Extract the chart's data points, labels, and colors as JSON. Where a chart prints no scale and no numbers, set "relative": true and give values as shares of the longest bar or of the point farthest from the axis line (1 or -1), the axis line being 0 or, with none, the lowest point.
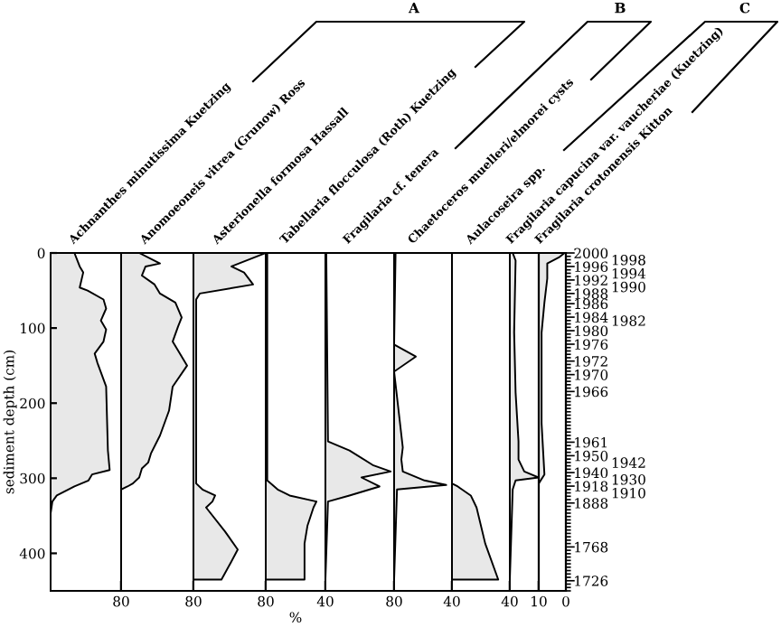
{
  "chart_data": [
    {
      "type": "area",
      "orientation": "horizontal",
      "title": "Achnanthes minutissima Kuetzing",
      "ylabel": "sediment depth (cm)",
      "xlim": [
        0,
        80
      ],
      "xticks": [
        80
      ],
      "ylim": [
        450,
        0
      ],
      "yticks": [
        0,
        100,
        200,
        300,
        400
      ],
      "annotations": [
        "A"
      ],
      "series": [
        {
          "color": "#e8e8e8",
          "x": [
            0,
            18,
            26,
            46,
            50,
            62,
            74,
            90,
            102,
            118,
            134,
            146,
            178,
            263,
            289,
            295,
            303,
            311,
            323,
            331,
            347,
            435
          ],
          "values": [
            27,
            33,
            37,
            33,
            42,
            60,
            63,
            57,
            63,
            60,
            50,
            53,
            63,
            65,
            67,
            47,
            43,
            27,
            7,
            2,
            0,
            0
          ]
        }
      ]
    },
    {
      "type": "area",
      "orientation": "horizontal",
      "title": "Anomoeoneis vitrea (Grunow) Ross",
      "xlim": [
        0,
        80
      ],
      "xticks": [
        80
      ],
      "ylim": [
        450,
        0
      ],
      "tick_labels": "x",
      "series": [
        {
          "color": "#e8e8e8",
          "x": [
            0,
            14,
            18,
            30,
            42,
            54,
            66,
            86,
            98,
            118,
            130,
            150,
            178,
            210,
            243,
            267,
            279,
            287,
            299,
            307,
            311,
            315,
            435
          ],
          "values": [
            20,
            43,
            27,
            23,
            37,
            43,
            60,
            67,
            63,
            57,
            63,
            73,
            57,
            53,
            43,
            33,
            30,
            23,
            20,
            13,
            7,
            0,
            0
          ]
        }
      ]
    },
    {
      "type": "area",
      "orientation": "horizontal",
      "title": "Asterionella formosa Hassall",
      "xlim": [
        0,
        80
      ],
      "xticks": [
        80
      ],
      "ylim": [
        450,
        0
      ],
      "tick_labels": "x",
      "series": [
        {
          "color": "#e8e8e8",
          "x": [
            0,
            18,
            26,
            42,
            54,
            62,
            307,
            315,
            323,
            331,
            339,
            371,
            395,
            411,
            435
          ],
          "values": [
            80,
            42,
            56,
            66,
            7,
            3,
            3,
            10,
            24,
            21,
            14,
            35,
            49,
            42,
            31
          ]
        }
      ]
    },
    {
      "type": "area",
      "orientation": "horizontal",
      "title": "Tabellaria flocculosa (Roth) Kuetzing",
      "xlabel": "%",
      "xlim": [
        0,
        40
      ],
      "xticks": [
        40
      ],
      "ylim": [
        450,
        0
      ],
      "tick_labels": "x",
      "series": [
        {
          "color": "#e8e8e8",
          "x": [
            0,
            303,
            315,
            323,
            331,
            339,
            363,
            387,
            435
          ],
          "values": [
            1,
            1,
            8,
            16,
            34,
            32,
            28,
            26,
            26
          ]
        }
      ]
    },
    {
      "type": "area",
      "orientation": "horizontal",
      "title": "Fragilaria cf. tenera",
      "xlim": [
        0,
        80
      ],
      "xticks": [
        80
      ],
      "ylim": [
        450,
        0
      ],
      "tick_labels": "x",
      "series": [
        {
          "color": "#e8e8e8",
          "x": [
            0,
            251,
            263,
            283,
            291,
            299,
            311,
            323,
            331,
            435
          ],
          "values": [
            1,
            3,
            28,
            56,
            76,
            42,
            63,
            28,
            3,
            0
          ]
        }
      ]
    },
    {
      "type": "area",
      "orientation": "horizontal",
      "title": "Chaetoceros muelleri/elmorei cysts",
      "xlim": [
        0,
        40
      ],
      "xticks": [
        40
      ],
      "ylim": [
        450,
        0
      ],
      "tick_labels": "x",
      "annotations": [
        "B"
      ],
      "series": [
        {
          "color": "#e8e8e8",
          "x": [
            0,
            122,
            138,
            158,
            259,
            275,
            291,
            303,
            309,
            315,
            435
          ],
          "values": [
            1,
            0,
            15,
            0,
            6,
            5,
            6,
            21,
            36,
            2,
            0
          ]
        }
      ]
    },
    {
      "type": "area",
      "orientation": "horizontal",
      "title": "Aulacoseira spp.",
      "xlim": [
        0,
        40
      ],
      "xticks": [
        40
      ],
      "ylim": [
        450,
        0
      ],
      "tick_labels": "x",
      "series": [
        {
          "color": "#e8e8e8",
          "x": [
            0,
            307,
            311,
            323,
            339,
            387,
            435
          ],
          "values": [
            0,
            0,
            4,
            13,
            17,
            23,
            32
          ]
        }
      ]
    },
    {
      "type": "area",
      "orientation": "horizontal",
      "title": "Fragilaria capucina var. vaucheriae (Kuetzing)",
      "xlim": [
        0,
        10
      ],
      "xticks": [
        10
      ],
      "ylim": [
        450,
        0
      ],
      "tick_labels": "x",
      "annotations": [
        "C"
      ],
      "series": [
        {
          "color": "#e8e8e8",
          "x": [
            0,
            10,
            106,
            186,
            251,
            275,
            291,
            299,
            303,
            315,
            435
          ],
          "values": [
            1,
            2,
            1.5,
            2,
            3,
            3,
            5,
            10,
            2,
            1,
            0
          ]
        }
      ]
    },
    {
      "type": "area",
      "orientation": "horizontal",
      "title": "Fragilaria crotonensis Kitton",
      "relative": true,
      "ylim": [
        450,
        0
      ],
      "tick_labels": "x",
      "annotations": [
        "0"
      ],
      "y2_categories": [
        "2000",
        null,
        "1998",
        null,
        "1996",
        null,
        "1994",
        null,
        "1992",
        null,
        "1990",
        null,
        "1988",
        null,
        null,
        "1986",
        null,
        null,
        null,
        "1984",
        "1982",
        null,
        null,
        "1980",
        null,
        null,
        null,
        "1976",
        null,
        null,
        null,
        null,
        "1972",
        null,
        null,
        null,
        "1970",
        null,
        null,
        null,
        null,
        "1966",
        null,
        null,
        null,
        null,
        null,
        null,
        null,
        null,
        null,
        null,
        null,
        null,
        null,
        null,
        "1961",
        null,
        null,
        null,
        "1950",
        null,
        "1942",
        null,
        null,
        "1940",
        null,
        "1930",
        null,
        "1918",
        null,
        "1910",
        null,
        null,
        "1888",
        null,
        null,
        null,
        null,
        null,
        null,
        null,
        null,
        null,
        null,
        null,
        null,
        "1768",
        null,
        null,
        null,
        null,
        null,
        null,
        null,
        null,
        null,
        "1726",
        null,
        null,
        null
      ],
      "series": [
        {
          "color": "#e8e8e8",
          "x": [
            0,
            6,
            14,
            34,
            66,
            106,
            227,
            295,
            307,
            435
          ],
          "values": [
            1,
            0.78,
            0.33,
            0.33,
            0.22,
            0.11,
            0.11,
            0.22,
            0,
            0
          ]
        }
      ]
    }
  ]
}
